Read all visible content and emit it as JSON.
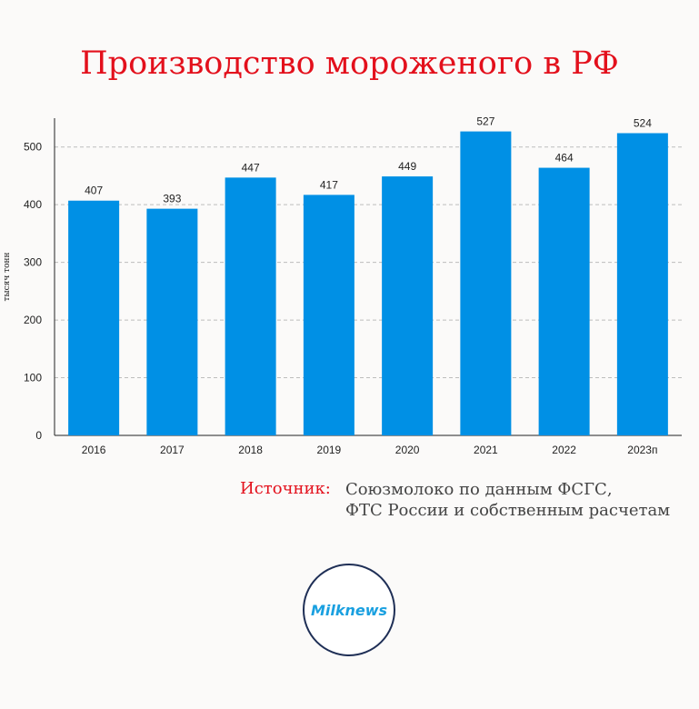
{
  "title": "Производство мороженого в РФ",
  "source": {
    "label": "Источник:",
    "line1": "Союзмолоко по данным ФСГС,",
    "line2": "ФТС России и собственным расчетам"
  },
  "logo": {
    "text": "Milknews"
  },
  "colors": {
    "bar": "#0090e5",
    "title": "#e3101c",
    "grid": "#bdbdbd"
  },
  "chart_data": {
    "type": "bar",
    "categories": [
      "2016",
      "2017",
      "2018",
      "2019",
      "2020",
      "2021",
      "2022",
      "2023п"
    ],
    "values": [
      407,
      393,
      447,
      417,
      449,
      527,
      464,
      524
    ],
    "title": "Производство мороженого в РФ",
    "xlabel": "",
    "ylabel": "тысяч тонн",
    "ylim": [
      0,
      550
    ],
    "yticks": [
      0,
      100,
      200,
      300,
      400,
      500
    ],
    "grid": true,
    "data_labels": true
  }
}
